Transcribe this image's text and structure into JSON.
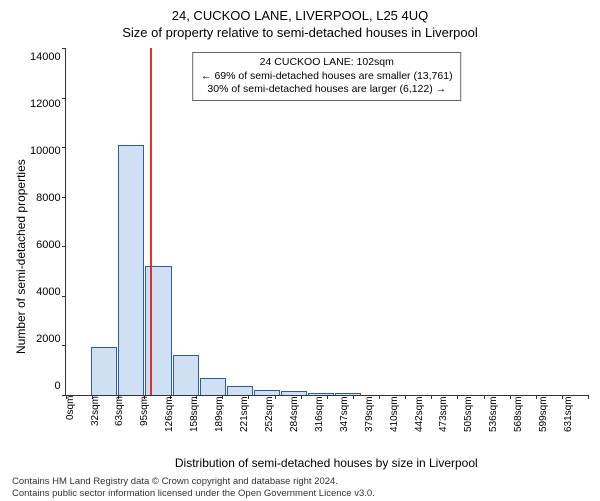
{
  "title": "24, CUCKOO LANE, LIVERPOOL, L25 4UQ",
  "subtitle": "Size of property relative to semi-detached houses in Liverpool",
  "y_axis_label": "Number of semi-detached properties",
  "x_axis_label": "Distribution of semi-detached houses by size in Liverpool",
  "annotation": {
    "line1": "24 CUCKOO LANE: 102sqm",
    "line2": "← 69% of semi-detached houses are smaller (13,761)",
    "line3": "30% of semi-detached houses are larger (6,122) →"
  },
  "footer": {
    "line1": "Contains HM Land Registry data © Crown copyright and database right 2024.",
    "line2": "Contains public sector information licensed under the Open Government Licence v3.0."
  },
  "chart": {
    "type": "histogram",
    "ylim": [
      0,
      14000
    ],
    "ytick_step": 2000,
    "yticks": [
      "0",
      "2000",
      "4000",
      "6000",
      "8000",
      "10000",
      "12000",
      "14000"
    ],
    "xticks": [
      "0sqm",
      "32sqm",
      "63sqm",
      "95sqm",
      "126sqm",
      "158sqm",
      "189sqm",
      "221sqm",
      "252sqm",
      "284sqm",
      "316sqm",
      "347sqm",
      "379sqm",
      "410sqm",
      "442sqm",
      "473sqm",
      "505sqm",
      "536sqm",
      "568sqm",
      "599sqm",
      "631sqm"
    ],
    "values": [
      0,
      1950,
      10100,
      5200,
      1600,
      700,
      350,
      200,
      150,
      100,
      80,
      0,
      0,
      0,
      0,
      0,
      0,
      0,
      0,
      0
    ],
    "bar_fill": "#cfe0f5",
    "bar_stroke": "#2b5ea0",
    "marker_color": "#e03030",
    "marker_position_pct": 16.2,
    "background_color": "#ffffff",
    "axis_color": "#333333",
    "text_color": "#000000"
  }
}
